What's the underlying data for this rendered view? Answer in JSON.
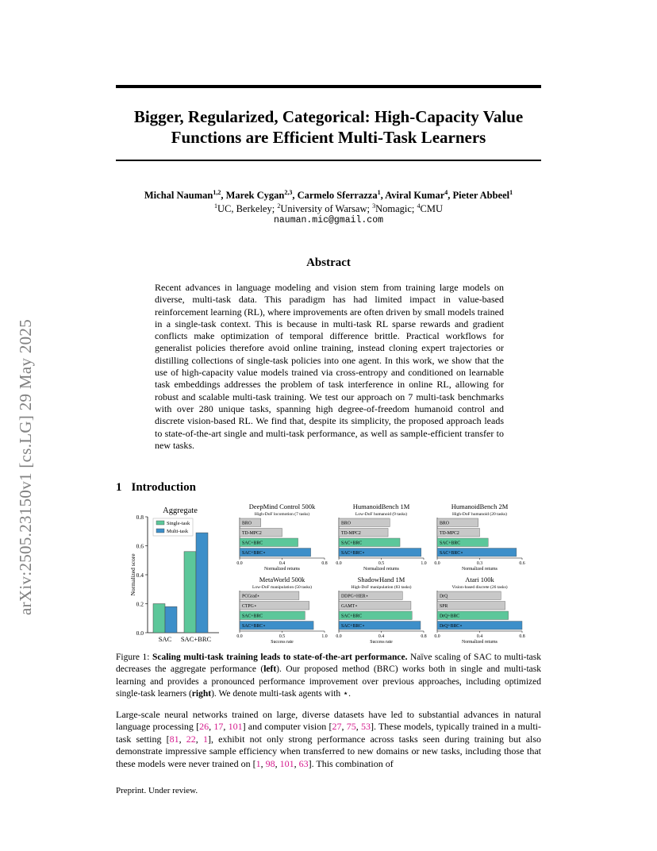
{
  "arxiv_id": "arXiv:2505.23150v1  [cs.LG]  29 May 2025",
  "title_line1": "Bigger, Regularized, Categorical: High-Capacity Value",
  "title_line2": "Functions are Efficient Multi-Task Learners",
  "authors": [
    {
      "name": "Michal Nauman",
      "sup": "1,2"
    },
    {
      "name": "Marek Cygan",
      "sup": "2,3"
    },
    {
      "name": "Carmelo Sferrazza",
      "sup": "1"
    },
    {
      "name": "Aviral Kumar",
      "sup": "4"
    },
    {
      "name": "Pieter Abbeel",
      "sup": "1"
    }
  ],
  "affiliations": [
    {
      "sup": "1",
      "name": "UC, Berkeley;"
    },
    {
      "sup": "2",
      "name": "University of Warsaw;"
    },
    {
      "sup": "3",
      "name": "Nomagic;"
    },
    {
      "sup": "4",
      "name": "CMU"
    }
  ],
  "email": "nauman.mic@gmail.com",
  "abstract_heading": "Abstract",
  "abstract": "Recent advances in language modeling and vision stem from training large models on diverse, multi-task data. This paradigm has had limited impact in value-based reinforcement learning (RL), where improvements are often driven by small models trained in a single-task context. This is because in multi-task RL sparse rewards and gradient conflicts make optimization of temporal difference brittle. Practical workflows for generalist policies therefore avoid online training, instead cloning expert trajectories or distilling collections of single-task policies into one agent. In this work, we show that the use of high-capacity value models trained via cross-entropy and conditioned on learnable task embeddings addresses the problem of task interference in online RL, allowing for robust and scalable multi-task training. We test our approach on 7 multi-task benchmarks with over 280 unique tasks, spanning high degree-of-freedom humanoid control and discrete vision-based RL. We find that, despite its simplicity, the proposed approach leads to state-of-the-art single and multi-task performance, as well as sample-efficient transfer to new tasks.",
  "section": {
    "number": "1",
    "title": "Introduction"
  },
  "figure": {
    "colors": {
      "single": "#5cc79a",
      "multi": "#3d8fc9",
      "baseline": "#c8c8c8"
    },
    "aggregate": {
      "title": "Aggregate",
      "ylabel": "Normalized score",
      "yticks": [
        "0.0",
        "0.2",
        "0.4",
        "0.6",
        "0.8"
      ],
      "legend": [
        "Single-task",
        "Multi-task"
      ],
      "categories": [
        "SAC",
        "SAC+BRC"
      ],
      "single": [
        0.2,
        0.56
      ],
      "multi": [
        0.18,
        0.69
      ]
    },
    "panels": [
      {
        "title": "DeepMind Control 500k",
        "subtitle": "High-DoF locomotion (7 tasks)",
        "xlabel": "Normalized returns",
        "xticks": [
          "0.0",
          "0.4",
          "0.8"
        ],
        "xmax": 0.8,
        "bars": [
          {
            "label": "BRO",
            "value": 0.2,
            "kind": "baseline"
          },
          {
            "label": "TD-MPC2",
            "value": 0.4,
            "kind": "baseline"
          },
          {
            "label": "SAC+BRC",
            "value": 0.55,
            "kind": "single"
          },
          {
            "label": "SAC+BRC⋆",
            "value": 0.67,
            "kind": "multi"
          }
        ]
      },
      {
        "title": "HumanoidBench 1M",
        "subtitle": "Low-DoF humanoid (9 tasks)",
        "xlabel": "Normalized returns",
        "xticks": [
          "0.0",
          "0.5",
          "1.0"
        ],
        "xmax": 1.0,
        "bars": [
          {
            "label": "BRO",
            "value": 0.6,
            "kind": "baseline"
          },
          {
            "label": "TD-MPC2",
            "value": 0.58,
            "kind": "baseline"
          },
          {
            "label": "SAC+BRC",
            "value": 0.72,
            "kind": "single"
          },
          {
            "label": "SAC+BRC⋆",
            "value": 0.97,
            "kind": "multi"
          }
        ]
      },
      {
        "title": "HumanoidBench 2M",
        "subtitle": "High-DoF humanoid (20 tasks)",
        "xlabel": "Normalized returns",
        "xticks": [
          "0.0",
          "0.3",
          "0.6"
        ],
        "xmax": 0.6,
        "bars": [
          {
            "label": "BRO",
            "value": 0.29,
            "kind": "baseline"
          },
          {
            "label": "TD-MPC2",
            "value": 0.3,
            "kind": "baseline"
          },
          {
            "label": "SAC+BRC",
            "value": 0.36,
            "kind": "single"
          },
          {
            "label": "SAC+BRC⋆",
            "value": 0.56,
            "kind": "multi"
          }
        ]
      },
      {
        "title": "MetaWorld 500k",
        "subtitle": "Low-DoF manipulation (50 tasks)",
        "xlabel": "Success rate",
        "xticks": [
          "0.0",
          "0.5",
          "1.0"
        ],
        "xmax": 1.0,
        "bars": [
          {
            "label": "PCGrad⋆",
            "value": 0.7,
            "kind": "baseline"
          },
          {
            "label": "CTPG⋆",
            "value": 0.82,
            "kind": "baseline"
          },
          {
            "label": "SAC+BRC",
            "value": 0.77,
            "kind": "single"
          },
          {
            "label": "SAC+BRC⋆",
            "value": 0.87,
            "kind": "multi"
          }
        ]
      },
      {
        "title": "ShadowHand 1M",
        "subtitle": "High-DoF manipulation (83 tasks)",
        "xlabel": "Success rate",
        "xticks": [
          "0.0",
          "0.4",
          "0.8"
        ],
        "xmax": 0.8,
        "bars": [
          {
            "label": "DDPG+HER⋆",
            "value": 0.6,
            "kind": "baseline"
          },
          {
            "label": "GAMT⋆",
            "value": 0.68,
            "kind": "baseline"
          },
          {
            "label": "SAC+BRC",
            "value": 0.69,
            "kind": "single"
          },
          {
            "label": "SAC+BRC⋆",
            "value": 0.77,
            "kind": "multi"
          }
        ]
      },
      {
        "title": "Atari 100k",
        "subtitle": "Vision-based discrete (26 tasks)",
        "xlabel": "Normalized returns",
        "xticks": [
          "0.0",
          "0.4",
          "0.8"
        ],
        "xmax": 0.8,
        "bars": [
          {
            "label": "DrQ",
            "value": 0.6,
            "kind": "baseline"
          },
          {
            "label": "SPR",
            "value": 0.64,
            "kind": "baseline"
          },
          {
            "label": "DrQ+BRC",
            "value": 0.67,
            "kind": "single"
          },
          {
            "label": "DrQ+BRC⋆",
            "value": 0.8,
            "kind": "multi"
          }
        ]
      }
    ]
  },
  "caption": {
    "label": "Figure 1:",
    "bold": "Scaling multi-task training leads to state-of-the-art performance.",
    "text1": "Naïve scaling of SAC to multi-task decreases the aggregate performance (",
    "left": "left",
    "text2": "). Our proposed method (BRC) works both in single and multi-task learning and provides a pronounced performance improvement over previous approaches, including optimized single-task learners (",
    "right": "right",
    "text3": "). We denote multi-task agents with ⋆."
  },
  "body": {
    "p1": "Large-scale neural networks trained on large, diverse datasets have led to substantial advances in natural language processing [",
    "r1": [
      "26",
      "17",
      "101"
    ],
    "p2": "] and computer vision [",
    "r2": [
      "27",
      "75",
      "53"
    ],
    "p3": "]. These models, typically trained in a multi-task setting [",
    "r3": [
      "81",
      "22",
      "1"
    ],
    "p4": "], exhibit not only strong performance across tasks seen during training but also demonstrate impressive sample efficiency when transferred to new domains or new tasks, including those that these models were never trained on [",
    "r4": [
      "1",
      "98",
      "101",
      "63"
    ],
    "p5": "]. This combination of"
  },
  "footer": "Preprint. Under review."
}
